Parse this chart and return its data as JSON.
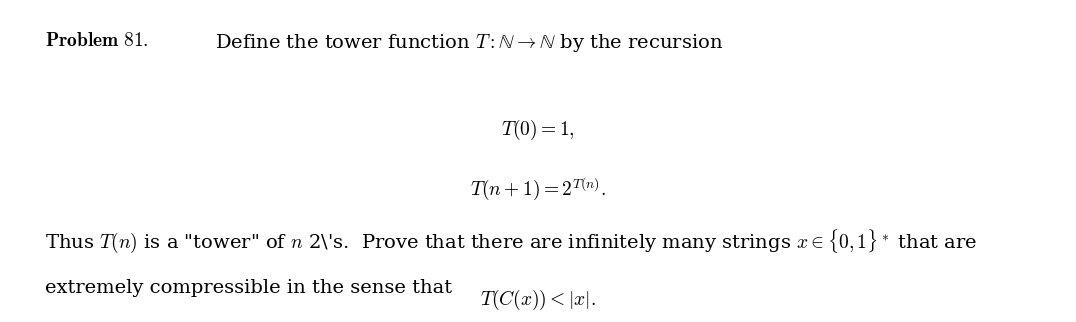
{
  "figsize": [
    10.76,
    3.22
  ],
  "dpi": 100,
  "background_color": "#ffffff",
  "line1_bold": "Problem 81.",
  "line1_normal": "  Define the tower function $T : \\mathbb{N} \\rightarrow \\mathbb{N}$ by the recursion",
  "line2": "$T(0) = 1,$",
  "line3": "$T(n+1) = 2^{T(n)}.$",
  "line4": "Thus $T(n)$ is a \"tower\" of $n$ 2's.  Prove that there are infinitely many strings $x \\in \\{0,1\\}^*$ that are",
  "line5": "extremely compressible in the sense that",
  "line6": "$T(C(x)) < |x|.$",
  "fontsize": 14,
  "color": "#000000"
}
